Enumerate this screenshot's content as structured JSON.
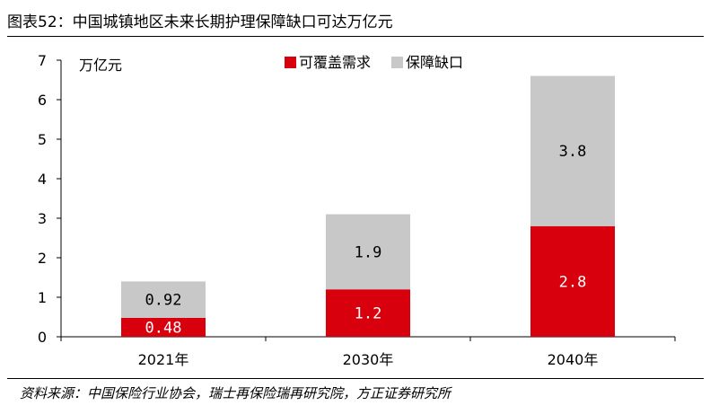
{
  "title": "图表52：中国城镇地区未来长期护理保障缺口可达万亿元",
  "source": "资料来源：中国保险行业协会，瑞士再保险瑞再研究院，方正证券研究所",
  "chart_data": {
    "type": "bar",
    "stacked": true,
    "categories": [
      "2021年",
      "2030年",
      "2040年"
    ],
    "series": [
      {
        "name": "可覆盖需求",
        "values": [
          0.48,
          1.2,
          2.8
        ],
        "labels": [
          "0.48",
          "1.2",
          "2.8"
        ],
        "color": "#d9000d",
        "label_color": "#ffffff"
      },
      {
        "name": "保障缺口",
        "values": [
          0.92,
          1.9,
          3.8
        ],
        "labels": [
          "0.92",
          "1.9",
          "3.8"
        ],
        "color": "#c8c8c8",
        "label_color": "#000000"
      }
    ],
    "ylabel": "万亿元",
    "ylim": [
      0,
      7
    ],
    "yticks": [
      "0",
      "1",
      "2",
      "3",
      "4",
      "5",
      "6",
      "7"
    ],
    "grid": false,
    "legend_position": "top-center"
  }
}
